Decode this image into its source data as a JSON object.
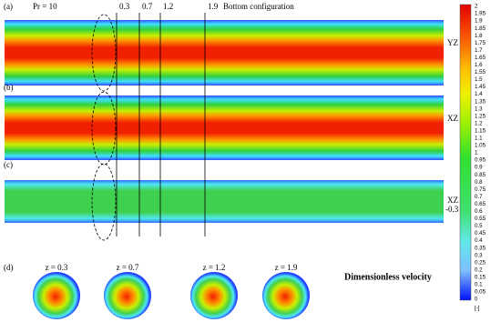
{
  "header": {
    "pr": "Pr = 10",
    "positions": [
      "0.3",
      "0.7",
      "1.2",
      "1.9"
    ],
    "config": "Bottom configuration"
  },
  "panels": [
    {
      "label": "(a)",
      "plane": [
        "YZ"
      ]
    },
    {
      "label": "(b)",
      "plane": [
        "XZ"
      ]
    },
    {
      "label": "(c)",
      "plane": [
        "XZ",
        "-0.3"
      ]
    }
  ],
  "sections": {
    "label": "(d)",
    "titles": [
      "z = 0.3",
      "z = 0.7",
      "z = 1.2",
      "z = 1.9"
    ],
    "caption": "Dimensionless velocity"
  },
  "colorbar": {
    "labels": [
      "2",
      "1.95",
      "1.9",
      "1.85",
      "1.8",
      "1.75",
      "1.7",
      "1.65",
      "1.6",
      "1.55",
      "1.5",
      "1.45",
      "1.4",
      "1.35",
      "1.3",
      "1.25",
      "1.2",
      "1.15",
      "1.1",
      "1.05",
      "1",
      "0.95",
      "0.9",
      "0.85",
      "0.8",
      "0.75",
      "0.7",
      "0.65",
      "0.6",
      "0.55",
      "0.5",
      "0.45",
      "0.4",
      "0.35",
      "0.3",
      "0.25",
      "0.2",
      "0.15",
      "0.1",
      "0.05",
      "0"
    ],
    "unit": "[-]"
  }
}
